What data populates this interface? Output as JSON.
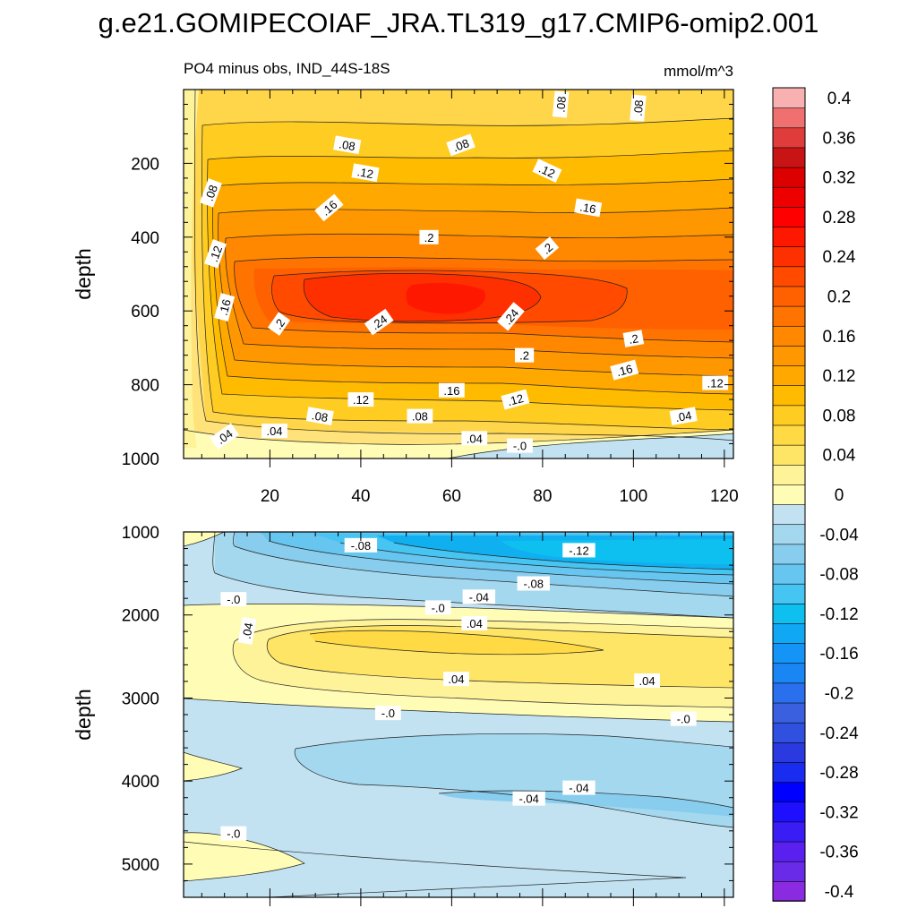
{
  "chart_data": {
    "type": "contour",
    "title": "g.e21.GOMIPECOIAF_JRA.TL319_g17.CMIP6-omip2.001",
    "units": "mmol/m^3",
    "colorbar": {
      "levels": [
        -0.4,
        -0.38,
        -0.36,
        -0.34,
        -0.32,
        -0.3,
        -0.28,
        -0.26,
        -0.24,
        -0.22,
        -0.2,
        -0.18,
        -0.16,
        -0.14,
        -0.12,
        -0.1,
        -0.08,
        -0.06,
        -0.04,
        -0.02,
        0,
        0.02,
        0.04,
        0.06,
        0.08,
        0.1,
        0.12,
        0.14,
        0.16,
        0.18,
        0.2,
        0.22,
        0.24,
        0.26,
        0.28,
        0.3,
        0.32,
        0.34,
        0.36,
        0.38,
        0.4
      ],
      "colors": [
        "#8a2be2",
        "#6a2be8",
        "#5a20f0",
        "#3a1cf5",
        "#1e10ff",
        "#0000ff",
        "#1a2cf0",
        "#2a3ae0",
        "#3050e0",
        "#3a60e0",
        "#2a70ee",
        "#1a86f4",
        "#1494f6",
        "#10a8f5",
        "#0ec0f0",
        "#46c4f2",
        "#66c6f0",
        "#88cdee",
        "#a4d8ee",
        "#c2e2f2",
        "#fffcb6",
        "#fff39a",
        "#ffe566",
        "#ffda44",
        "#ffcc22",
        "#ffbb00",
        "#ffa800",
        "#ff9800",
        "#ff8800",
        "#ff7400",
        "#ff6000",
        "#ff4a00",
        "#ff3000",
        "#ff1800",
        "#ff0000",
        "#ee0000",
        "#dc0000",
        "#c81414",
        "#e03c3c",
        "#f07070",
        "#f8b0b0"
      ],
      "tick_labels": [
        "0.4",
        "0.36",
        "0.32",
        "0.28",
        "0.24",
        "0.2",
        "0.16",
        "0.12",
        "0.08",
        "0.04",
        "0",
        "-0.04",
        "-0.08",
        "-0.12",
        "-0.16",
        "-0.2",
        "-0.24",
        "-0.28",
        "-0.32",
        "-0.36",
        "-0.4"
      ]
    },
    "panels": [
      {
        "name": "upper",
        "subtitle": "PO4 minus obs, IND_44S-18S",
        "xlabel": "",
        "ylabel": "depth",
        "xlim": [
          1,
          122
        ],
        "ylim": [
          1000,
          0
        ],
        "x_ticks": [
          20,
          40,
          60,
          80,
          100,
          120
        ],
        "y_ticks": [
          200,
          400,
          600,
          800,
          1000
        ],
        "x_tick_labels": [
          "20",
          "40",
          "60",
          "80",
          "100",
          "120"
        ],
        "y_tick_labels": [
          "200",
          "400",
          "600",
          "800",
          "1000"
        ],
        "contour_labels": [
          {
            "text": ".08",
            "x": 84,
            "y": 40,
            "rot": -85
          },
          {
            "text": ".08",
            "x": 101,
            "y": 50,
            "rot": -85
          },
          {
            "text": ".08",
            "x": 37,
            "y": 150,
            "rot": 10
          },
          {
            "text": ".08",
            "x": 62,
            "y": 150,
            "rot": -20
          },
          {
            "text": ".08",
            "x": 7,
            "y": 280,
            "rot": -70
          },
          {
            "text": ".12",
            "x": 41,
            "y": 225,
            "rot": 10
          },
          {
            "text": ".12",
            "x": 81,
            "y": 220,
            "rot": 25
          },
          {
            "text": ".16",
            "x": 33,
            "y": 320,
            "rot": -40
          },
          {
            "text": ".16",
            "x": 90,
            "y": 320,
            "rot": 10
          },
          {
            "text": ".12",
            "x": 8,
            "y": 445,
            "rot": -70
          },
          {
            "text": ".2",
            "x": 55,
            "y": 400,
            "rot": 0
          },
          {
            "text": ".2",
            "x": 81,
            "y": 430,
            "rot": -40
          },
          {
            "text": ".16",
            "x": 10,
            "y": 590,
            "rot": -75
          },
          {
            "text": ".2",
            "x": 22,
            "y": 635,
            "rot": -55
          },
          {
            "text": ".24",
            "x": 44,
            "y": 630,
            "rot": -35
          },
          {
            "text": ".24",
            "x": 73,
            "y": 615,
            "rot": -50
          },
          {
            "text": ".2",
            "x": 100,
            "y": 675,
            "rot": -10
          },
          {
            "text": ".2",
            "x": 76,
            "y": 720,
            "rot": 0
          },
          {
            "text": ".16",
            "x": 98,
            "y": 760,
            "rot": -15
          },
          {
            "text": ".12",
            "x": 118,
            "y": 795,
            "rot": 0
          },
          {
            "text": ".16",
            "x": 60,
            "y": 815,
            "rot": 0
          },
          {
            "text": ".12",
            "x": 40,
            "y": 840,
            "rot": 0
          },
          {
            "text": ".12",
            "x": 74,
            "y": 840,
            "rot": -15
          },
          {
            "text": ".08",
            "x": 31,
            "y": 885,
            "rot": 10
          },
          {
            "text": ".08",
            "x": 53,
            "y": 885,
            "rot": 0
          },
          {
            "text": ".04",
            "x": 111,
            "y": 885,
            "rot": -10
          },
          {
            "text": ".04",
            "x": 10,
            "y": 940,
            "rot": -35
          },
          {
            "text": ".04",
            "x": 21,
            "y": 925,
            "rot": 0
          },
          {
            "text": ".04",
            "x": 65,
            "y": 945,
            "rot": 0
          },
          {
            "text": "-.0",
            "x": 75,
            "y": 965,
            "rot": 0
          }
        ]
      },
      {
        "name": "lower",
        "subtitle": "",
        "xlabel": "",
        "ylabel": "depth",
        "xlim": [
          1,
          122
        ],
        "ylim": [
          5400,
          1000
        ],
        "x_ticks": [
          20,
          40,
          60,
          80,
          100,
          120
        ],
        "y_ticks": [
          1000,
          2000,
          3000,
          4000,
          5000
        ],
        "x_tick_labels": [
          "",
          "",
          "",
          "",
          "",
          ""
        ],
        "y_tick_labels": [
          "1000",
          "2000",
          "3000",
          "4000",
          "5000"
        ],
        "contour_labels": [
          {
            "text": "-.08",
            "x": 40,
            "y": 1160,
            "rot": 0
          },
          {
            "text": "-.12",
            "x": 88,
            "y": 1220,
            "rot": 0
          },
          {
            "text": "-.08",
            "x": 78,
            "y": 1620,
            "rot": 0
          },
          {
            "text": "-.04",
            "x": 66,
            "y": 1780,
            "rot": 0
          },
          {
            "text": "-.0",
            "x": 12,
            "y": 1810,
            "rot": 0
          },
          {
            "text": "-.0",
            "x": 57,
            "y": 1910,
            "rot": 0
          },
          {
            "text": ".04",
            "x": 65,
            "y": 2100,
            "rot": 0
          },
          {
            "text": ".04",
            "x": 15,
            "y": 2190,
            "rot": -80
          },
          {
            "text": ".04",
            "x": 61,
            "y": 2770,
            "rot": 0
          },
          {
            "text": ".04",
            "x": 103,
            "y": 2790,
            "rot": 0
          },
          {
            "text": "-.0",
            "x": 46,
            "y": 3180,
            "rot": 0
          },
          {
            "text": "-.0",
            "x": 111,
            "y": 3250,
            "rot": 0
          },
          {
            "text": "-.04",
            "x": 88,
            "y": 4080,
            "rot": 0
          },
          {
            "text": "-.04",
            "x": 77,
            "y": 4210,
            "rot": 0
          },
          {
            "text": "-.0",
            "x": 12,
            "y": 4630,
            "rot": 0
          }
        ]
      }
    ]
  }
}
